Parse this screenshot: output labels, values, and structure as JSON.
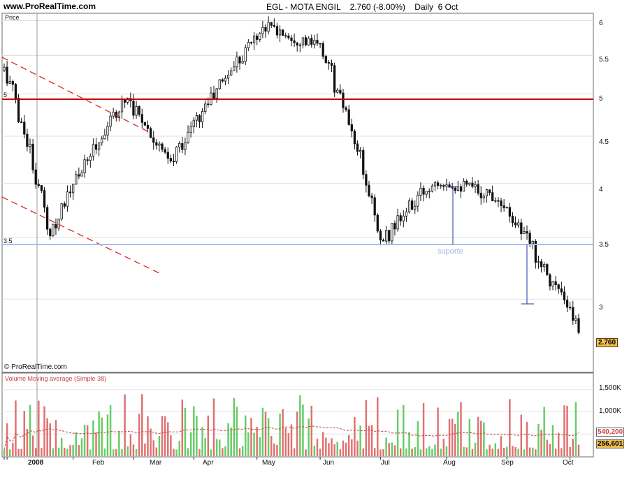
{
  "header": {
    "site": "www.ProRealTime.com",
    "instrument": "EGL - MOTA ENGIL    2.760 (-8.00%)    Daily  6 Oct"
  },
  "price_panel": {
    "title": "Price",
    "copyright": "© ProRealTime.com",
    "support_label": "suporte",
    "level_labels": {
      "five": "5",
      "three_five": "3.5"
    },
    "last_price": "2.760"
  },
  "volume_panel": {
    "title": "Volume Moving average (Simple 38)",
    "ma_value": "540,200",
    "last_value": "256,601"
  },
  "axes": {
    "price_ticks": [
      "6",
      "5.5",
      "5",
      "4.5",
      "4",
      "3.5",
      "3"
    ],
    "volume_ticks": [
      "1,500K",
      "1,000K"
    ],
    "x_ticks": [
      "2008",
      "Feb",
      "Mar",
      "Apr",
      "May",
      "Jun",
      "Jul",
      "Aug",
      "Sep",
      "Oct"
    ]
  },
  "chart_data": {
    "type": "candlestick",
    "title": "EGL - MOTA ENGIL",
    "frequency": "Daily",
    "ylim": [
      2.5,
      6.1
    ],
    "horizontal_levels": [
      {
        "value": 5.0,
        "color": "#cc0000"
      },
      {
        "value": 3.5,
        "color": "#9fb8e8"
      }
    ],
    "key_points": [
      {
        "date": "2007-12-31",
        "close": 5.3
      },
      {
        "date": "2008-01-21",
        "low": 3.53
      },
      {
        "date": "2008-02-28",
        "close": 4.97
      },
      {
        "date": "2008-03-20",
        "low": 4.2
      },
      {
        "date": "2008-05-05",
        "high": 5.93
      },
      {
        "date": "2008-06-02",
        "close": 5.6
      },
      {
        "date": "2008-07-01",
        "low": 3.46
      },
      {
        "date": "2008-07-28",
        "high": 4.05
      },
      {
        "date": "2008-08-27",
        "high": 3.87
      },
      {
        "date": "2008-10-06",
        "close": 2.76,
        "change_pct": -8.0
      }
    ],
    "volume_units": "K",
    "volume_ylim": [
      0,
      1700
    ],
    "volume_ma_period": 38,
    "volume_ma_last": 540200,
    "volume_last": 256601
  }
}
